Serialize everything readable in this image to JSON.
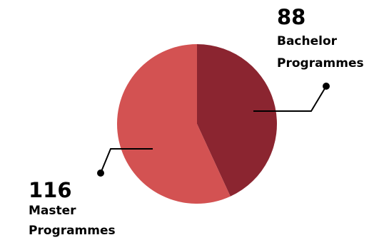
{
  "chart_data": {
    "type": "pie",
    "title": "",
    "slices": [
      {
        "value": 88,
        "label_line1": "Bachelor",
        "label_line2": "Programmes",
        "color": "#8b2530"
      },
      {
        "value": 116,
        "label_line1": "Master",
        "label_line2": "Programmes",
        "color": "#d35252"
      }
    ],
    "legend": "none"
  }
}
